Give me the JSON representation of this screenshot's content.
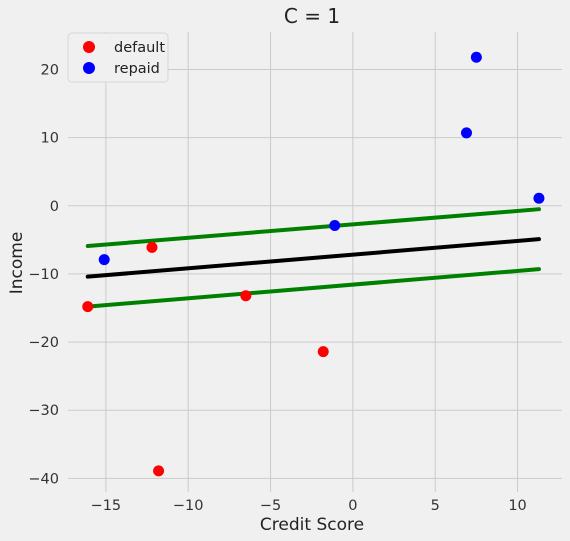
{
  "chart_data": {
    "type": "scatter",
    "title": "C = 1",
    "xlabel": "Credit Score",
    "ylabel": "Income",
    "xlim": [
      -17.3,
      12.7
    ],
    "ylim": [
      -42,
      25.5
    ],
    "xticks": [
      -15,
      -10,
      -5,
      0,
      5,
      10
    ],
    "yticks": [
      -40,
      -30,
      -20,
      -10,
      0,
      10,
      20
    ],
    "grid": true,
    "legend_position": "top-left",
    "series": [
      {
        "name": "default",
        "color": "#ff0000",
        "points": [
          {
            "x": -16.1,
            "y": -14.8
          },
          {
            "x": -12.2,
            "y": -6.1
          },
          {
            "x": -11.8,
            "y": -38.9
          },
          {
            "x": -6.5,
            "y": -13.2
          },
          {
            "x": -1.8,
            "y": -21.4
          }
        ]
      },
      {
        "name": "repaid",
        "color": "#0000ff",
        "points": [
          {
            "x": -15.1,
            "y": -7.9
          },
          {
            "x": -1.1,
            "y": -2.9
          },
          {
            "x": 6.9,
            "y": 10.7
          },
          {
            "x": 7.5,
            "y": 21.8
          },
          {
            "x": 11.3,
            "y": 1.1
          }
        ]
      }
    ],
    "lines": [
      {
        "role": "upper-margin",
        "color": "#008000",
        "x": [
          -16.1,
          11.3
        ],
        "y": [
          -5.9,
          -0.5
        ]
      },
      {
        "role": "decision-boundary",
        "color": "#000000",
        "x": [
          -16.1,
          11.3
        ],
        "y": [
          -10.4,
          -4.9
        ]
      },
      {
        "role": "lower-margin",
        "color": "#008000",
        "x": [
          -16.1,
          11.3
        ],
        "y": [
          -14.8,
          -9.3
        ]
      }
    ]
  }
}
